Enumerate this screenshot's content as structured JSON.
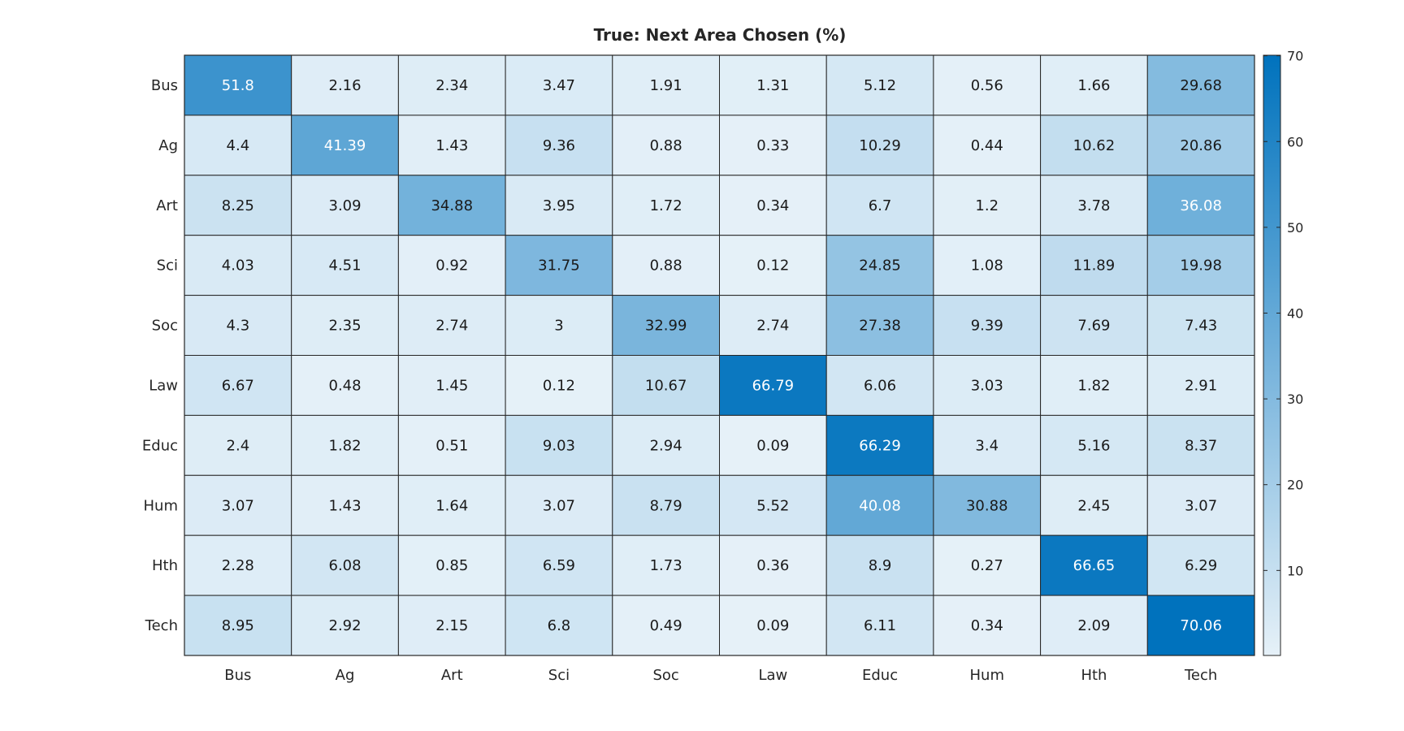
{
  "chart_data": {
    "type": "heatmap",
    "title": "True: Next Area Chosen (%)",
    "xlabel": "",
    "ylabel": "",
    "x_categories": [
      "Bus",
      "Ag",
      "Art",
      "Sci",
      "Soc",
      "Law",
      "Educ",
      "Hum",
      "Hth",
      "Tech"
    ],
    "y_categories": [
      "Bus",
      "Ag",
      "Art",
      "Sci",
      "Soc",
      "Law",
      "Educ",
      "Hum",
      "Hth",
      "Tech"
    ],
    "values": [
      [
        51.8,
        2.16,
        2.34,
        3.47,
        1.91,
        1.31,
        5.12,
        0.56,
        1.66,
        29.68
      ],
      [
        4.4,
        41.39,
        1.43,
        9.36,
        0.88,
        0.33,
        10.29,
        0.44,
        10.62,
        20.86
      ],
      [
        8.25,
        3.09,
        34.88,
        3.95,
        1.72,
        0.34,
        6.7,
        1.2,
        3.78,
        36.08
      ],
      [
        4.03,
        4.51,
        0.92,
        31.75,
        0.88,
        0.12,
        24.85,
        1.08,
        11.89,
        19.98
      ],
      [
        4.3,
        2.35,
        2.74,
        3,
        32.99,
        2.74,
        27.38,
        9.39,
        7.69,
        7.43
      ],
      [
        6.67,
        0.48,
        1.45,
        0.12,
        10.67,
        66.79,
        6.06,
        3.03,
        1.82,
        2.91
      ],
      [
        2.4,
        1.82,
        0.51,
        9.03,
        2.94,
        0.09,
        66.29,
        3.4,
        5.16,
        8.37
      ],
      [
        3.07,
        1.43,
        1.64,
        3.07,
        8.79,
        5.52,
        40.08,
        30.88,
        2.45,
        3.07
      ],
      [
        2.28,
        6.08,
        0.85,
        6.59,
        1.73,
        0.36,
        8.9,
        0.27,
        66.65,
        6.29
      ],
      [
        8.95,
        2.92,
        2.15,
        6.8,
        0.49,
        0.09,
        6.11,
        0.34,
        2.09,
        70.06
      ]
    ],
    "colorbar": {
      "min": 0.09,
      "max": 70.06,
      "ticks": [
        10,
        20,
        30,
        40,
        50,
        60,
        70
      ],
      "low_color": "#ffffff",
      "high_color": "#0072bd"
    },
    "grid": true,
    "legend": "colorbar-right"
  }
}
